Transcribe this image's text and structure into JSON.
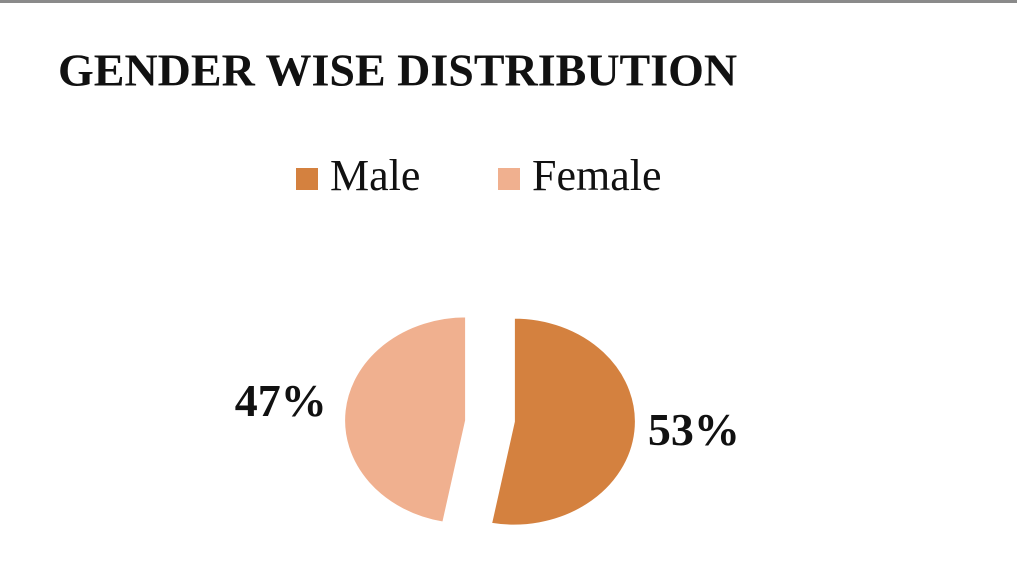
{
  "chart_data": {
    "type": "pie",
    "title": "GENDER WISE DISTRIBUTION",
    "categories": [
      "Male",
      "Female"
    ],
    "values": [
      53,
      47
    ],
    "value_labels": [
      "53%",
      "47%"
    ],
    "colors": [
      "#d4813f",
      "#f0b08f"
    ],
    "legend": "top"
  }
}
